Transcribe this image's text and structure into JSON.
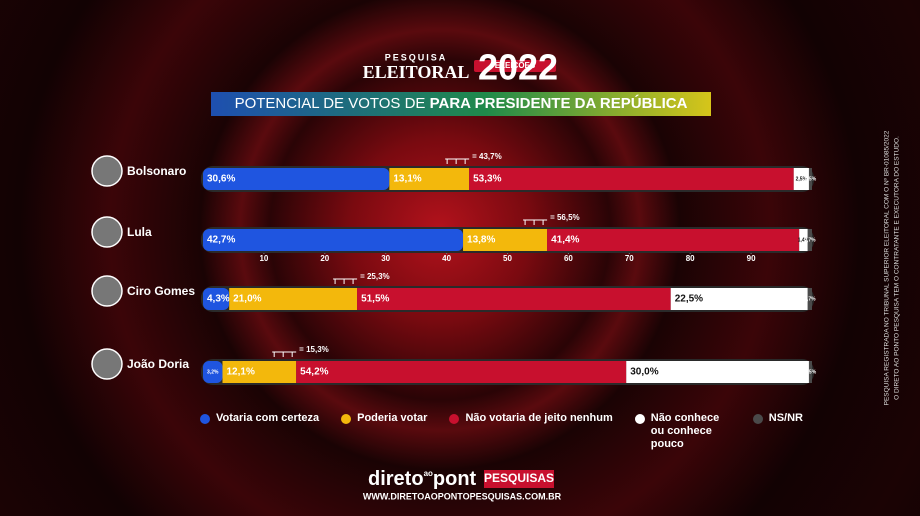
{
  "header": {
    "kicker": "PESQUISA",
    "brand": "ELEITORAL",
    "badge": "ELEIÇÕES",
    "year": "2022",
    "subtitle_light": "POTENCIAL DE VOTOS DE",
    "subtitle_bold": "PARA PRESIDENTE DA REPÚBLICA"
  },
  "chart_data": {
    "type": "bar",
    "orientation": "horizontal",
    "stacked": true,
    "categories": [
      "Bolsonaro",
      "Lula",
      "Ciro Gomes",
      "João Doria"
    ],
    "series": [
      {
        "name": "Votaria com certeza",
        "color": "#1f55e0",
        "values": [
          30.6,
          42.7,
          4.3,
          3.2
        ],
        "value_labels": [
          "30,6%",
          "42,7%",
          "4,3%",
          "3,2%"
        ]
      },
      {
        "name": "Poderia votar",
        "color": "#f3b80c",
        "values": [
          13.1,
          13.8,
          21.0,
          12.1
        ],
        "value_labels": [
          "13,1%",
          "13,8%",
          "21,0%",
          "12,1%"
        ]
      },
      {
        "name": "Não votaria de jeito nenhum",
        "color": "#c8102e",
        "values": [
          53.3,
          41.4,
          51.5,
          54.2
        ],
        "value_labels": [
          "53,3%",
          "41,4%",
          "51,5%",
          "54,2%"
        ]
      },
      {
        "name": "Não conhece ou conhece pouco",
        "color": "#ffffff",
        "values": [
          2.5,
          1.4,
          22.5,
          30.0
        ],
        "value_labels": [
          "2,5%",
          "1,4%",
          "22,5%",
          "30,0%"
        ]
      },
      {
        "name": "NS/NR",
        "color": "#4a4a4a",
        "values": [
          0.5,
          0.7,
          0.7,
          0.5
        ],
        "value_labels": [
          "0,5%",
          "0,7%",
          "0,7%",
          "0,5%"
        ]
      }
    ],
    "totals": {
      "values": [
        43.7,
        56.5,
        25.3,
        15.3
      ],
      "value_labels": [
        "= 43,7%",
        "= 56,5%",
        "= 25,3%",
        "= 15,3%"
      ]
    },
    "xlim": [
      0,
      100
    ],
    "xticks": [
      10,
      20,
      30,
      40,
      50,
      60,
      70,
      80,
      90
    ]
  },
  "footer": {
    "brand_a": "direto",
    "brand_b": "ao",
    "brand_c": "pont",
    "brand_tag": "PESQUISAS",
    "url": "WWW.DIRETOAOPONTOPESQUISAS.COM.BR"
  },
  "side_note": [
    "PESQUISA REGISTRADA NO TRIBUNAL SUPERIOR ELEITORAL COM O Nº BR-01085/2022",
    "O DIRETO AO PONTO PESQUISA TEM O CONTRATANTE E EXECUTORA DO ESTUDO."
  ]
}
